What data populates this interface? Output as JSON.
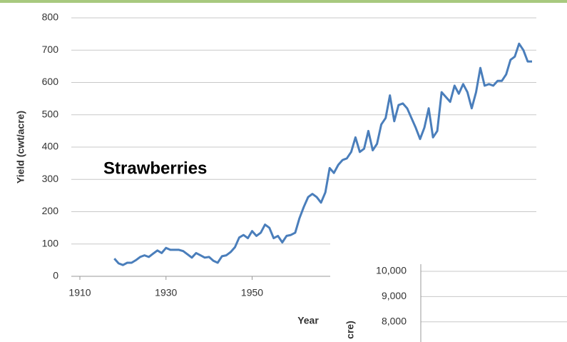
{
  "chart_data": [
    {
      "type": "line",
      "y_label": "Yield (cwt/acre)",
      "x_label": "Year",
      "annotation": "Strawberries",
      "xlim": [
        1910,
        2016
      ],
      "xticks": [
        1910,
        1930,
        1950
      ],
      "ylim": [
        0,
        800
      ],
      "yticks": [
        0,
        100,
        200,
        300,
        400,
        500,
        600,
        700,
        800
      ],
      "grid": true,
      "series": [
        {
          "name": "Strawberries",
          "color": "#4a7ebb",
          "x": [
            1918,
            1919,
            1920,
            1921,
            1922,
            1923,
            1924,
            1925,
            1926,
            1927,
            1928,
            1929,
            1930,
            1931,
            1932,
            1933,
            1934,
            1935,
            1936,
            1937,
            1938,
            1939,
            1940,
            1941,
            1942,
            1943,
            1944,
            1945,
            1946,
            1947,
            1948,
            1949,
            1950,
            1951,
            1952,
            1953,
            1954,
            1955,
            1956,
            1957,
            1958,
            1959,
            1960,
            1961,
            1962,
            1963,
            1964,
            1965,
            1966,
            1967,
            1968,
            1969,
            1970,
            1971,
            1972,
            1973,
            1974,
            1975,
            1976,
            1977,
            1978,
            1979,
            1980,
            1981,
            1982,
            1983,
            1984,
            1985,
            1986,
            1987,
            1988,
            1989,
            1990,
            1991,
            1992,
            1993,
            1994,
            1995,
            1996,
            1997,
            1998,
            1999,
            2000,
            2001,
            2002,
            2003,
            2004,
            2005,
            2006,
            2007,
            2008,
            2009,
            2010,
            2011,
            2012,
            2013,
            2014,
            2015
          ],
          "values": [
            55,
            40,
            35,
            42,
            42,
            50,
            60,
            65,
            60,
            70,
            80,
            72,
            88,
            82,
            82,
            82,
            78,
            68,
            58,
            72,
            65,
            58,
            60,
            48,
            42,
            62,
            65,
            75,
            90,
            120,
            128,
            118,
            140,
            125,
            135,
            160,
            150,
            118,
            125,
            105,
            125,
            128,
            135,
            180,
            215,
            245,
            255,
            245,
            228,
            260,
            335,
            320,
            345,
            360,
            365,
            385,
            430,
            385,
            395,
            450,
            390,
            410,
            470,
            490,
            560,
            480,
            530,
            535,
            520,
            490,
            460,
            425,
            460,
            520,
            430,
            450,
            570,
            555,
            540,
            590,
            565,
            595,
            570,
            520,
            570,
            645,
            590,
            595,
            590,
            605,
            605,
            625,
            670,
            680,
            720,
            700,
            665,
            665
          ]
        }
      ]
    },
    {
      "type": "line",
      "y_label": "cre)",
      "ylim": [
        7200,
        10000
      ],
      "yticks": [
        {
          "value": 10000,
          "label": "10,000"
        },
        {
          "value": 9000,
          "label": "9,000"
        },
        {
          "value": 8000,
          "label": "8,000"
        }
      ],
      "grid": true,
      "series": []
    }
  ]
}
